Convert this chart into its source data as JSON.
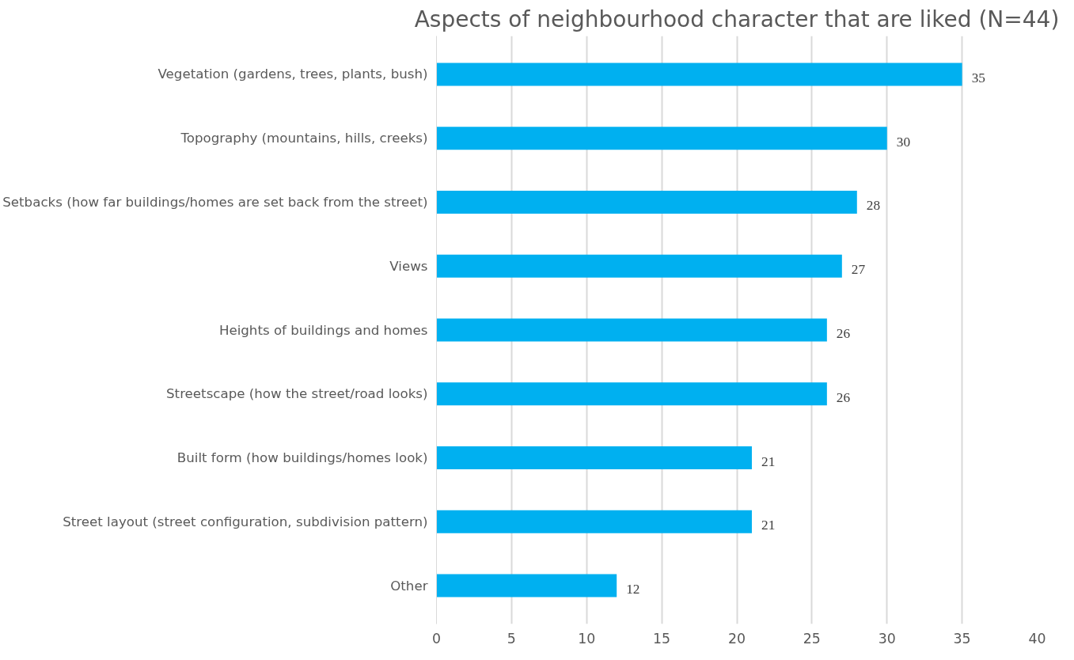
{
  "chart_data": {
    "type": "bar",
    "orientation": "horizontal",
    "title": "Aspects of neighbourhood character that are liked (N=44)",
    "categories": [
      "Vegetation (gardens, trees, plants, bush)",
      "Topography (mountains, hills, creeks)",
      "Setbacks (how far buildings/homes are set back from the street)",
      "Views",
      "Heights of buildings and homes",
      "Streetscape (how the street/road looks)",
      "Built form (how buildings/homes look)",
      "Street layout (street configuration, subdivision pattern)",
      "Other"
    ],
    "values": [
      35,
      30,
      28,
      27,
      26,
      26,
      21,
      21,
      12
    ],
    "color": "#00b0f0",
    "xlim": [
      0,
      40
    ],
    "xticks": [
      0,
      5,
      10,
      15,
      20,
      25,
      30,
      35,
      40
    ],
    "grid": "x",
    "data_labels": true
  }
}
